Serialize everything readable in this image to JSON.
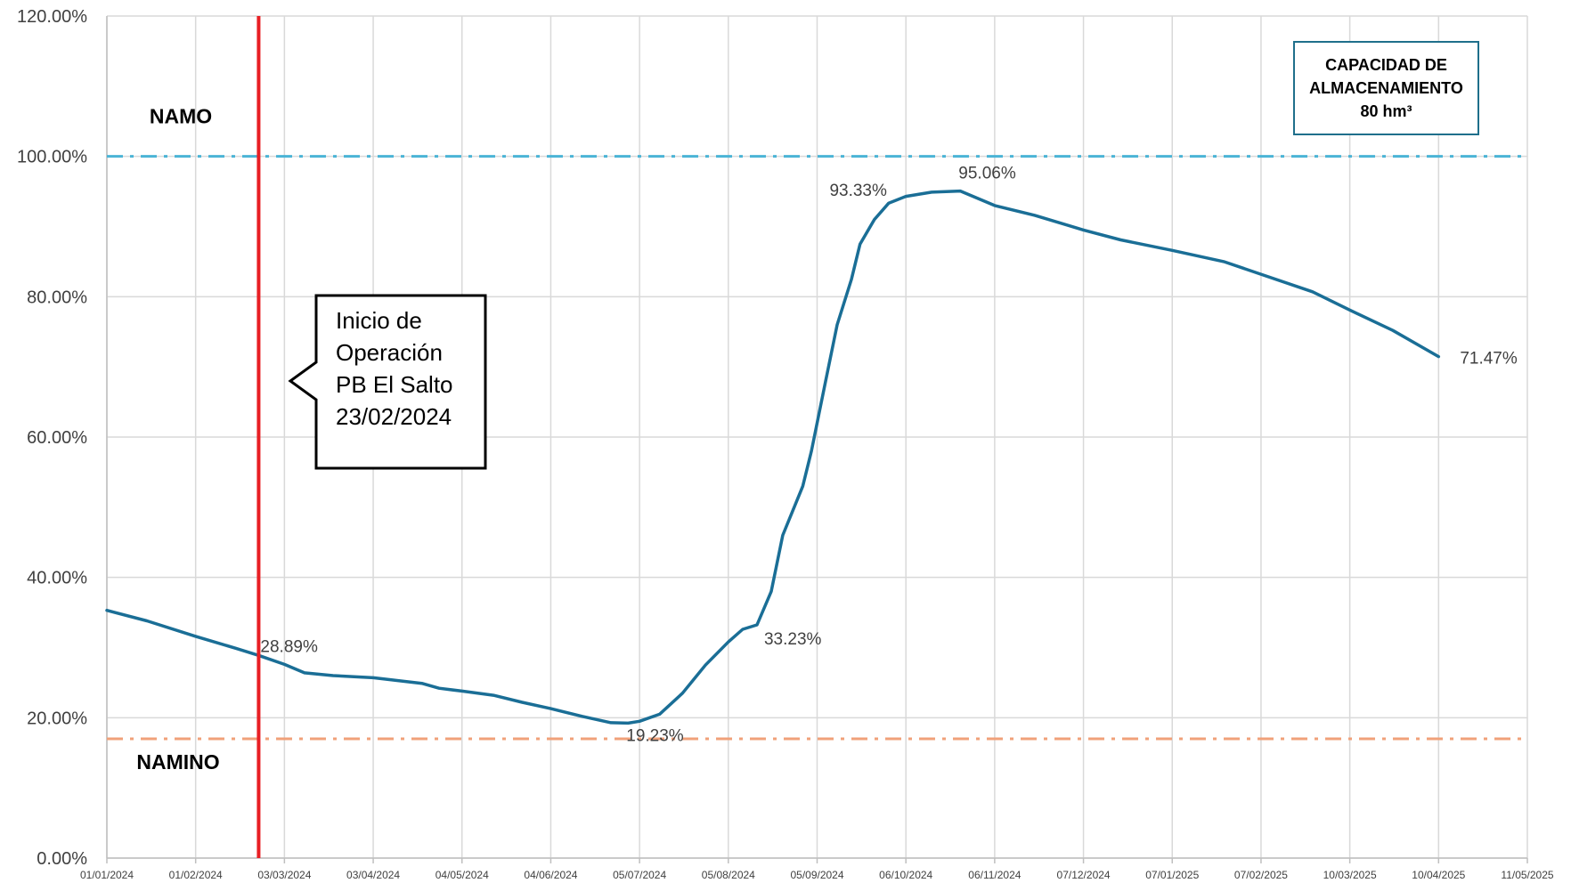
{
  "chart_data": {
    "type": "line",
    "ylim": [
      0,
      120
    ],
    "xlim": [
      "2024-01-01",
      "2025-05-11"
    ],
    "y_ticks": [
      "0.00%",
      "20.00%",
      "40.00%",
      "60.00%",
      "80.00%",
      "100.00%",
      "120.00%"
    ],
    "x_ticks": [
      {
        "date": "2024-01-01",
        "label": "01/01/2024"
      },
      {
        "date": "2024-02-01",
        "label": "01/02/2024"
      },
      {
        "date": "2024-03-03",
        "label": "03/03/2024"
      },
      {
        "date": "2024-04-03",
        "label": "03/04/2024"
      },
      {
        "date": "2024-05-04",
        "label": "04/05/2024"
      },
      {
        "date": "2024-06-04",
        "label": "04/06/2024"
      },
      {
        "date": "2024-07-05",
        "label": "05/07/2024"
      },
      {
        "date": "2024-08-05",
        "label": "05/08/2024"
      },
      {
        "date": "2024-09-05",
        "label": "05/09/2024"
      },
      {
        "date": "2024-10-06",
        "label": "06/10/2024"
      },
      {
        "date": "2024-11-06",
        "label": "06/11/2024"
      },
      {
        "date": "2024-12-07",
        "label": "07/12/2024"
      },
      {
        "date": "2025-01-07",
        "label": "07/01/2025"
      },
      {
        "date": "2025-02-07",
        "label": "07/02/2025"
      },
      {
        "date": "2025-03-10",
        "label": "10/03/2025"
      },
      {
        "date": "2025-04-10",
        "label": "10/04/2025"
      },
      {
        "date": "2025-05-11",
        "label": "11/05/2025"
      }
    ],
    "grid": true,
    "series": [
      {
        "color": "#1a6e96",
        "points": [
          [
            "2024-01-01",
            35.3
          ],
          [
            "2024-01-15",
            33.8
          ],
          [
            "2024-02-01",
            31.6
          ],
          [
            "2024-02-15",
            29.9
          ],
          [
            "2024-02-23",
            28.89
          ],
          [
            "2024-03-03",
            27.6
          ],
          [
            "2024-03-10",
            26.4
          ],
          [
            "2024-03-20",
            26.0
          ],
          [
            "2024-04-03",
            25.7
          ],
          [
            "2024-04-20",
            24.9
          ],
          [
            "2024-04-26",
            24.2
          ],
          [
            "2024-05-04",
            23.8
          ],
          [
            "2024-05-15",
            23.2
          ],
          [
            "2024-05-25",
            22.2
          ],
          [
            "2024-06-04",
            21.3
          ],
          [
            "2024-06-15",
            20.2
          ],
          [
            "2024-06-25",
            19.3
          ],
          [
            "2024-07-01",
            19.23
          ],
          [
            "2024-07-05",
            19.5
          ],
          [
            "2024-07-12",
            20.5
          ],
          [
            "2024-07-20",
            23.5
          ],
          [
            "2024-07-28",
            27.5
          ],
          [
            "2024-08-05",
            30.8
          ],
          [
            "2024-08-10",
            32.6
          ],
          [
            "2024-08-15",
            33.23
          ],
          [
            "2024-08-20",
            38.0
          ],
          [
            "2024-08-24",
            46.0
          ],
          [
            "2024-08-31",
            53.0
          ],
          [
            "2024-09-03",
            58.0
          ],
          [
            "2024-09-05",
            62.0
          ],
          [
            "2024-09-08",
            68.0
          ],
          [
            "2024-09-12",
            76.0
          ],
          [
            "2024-09-17",
            82.5
          ],
          [
            "2024-09-20",
            87.5
          ],
          [
            "2024-09-25",
            91.0
          ],
          [
            "2024-09-30",
            93.33
          ],
          [
            "2024-10-06",
            94.3
          ],
          [
            "2024-10-15",
            94.9
          ],
          [
            "2024-10-25",
            95.06
          ],
          [
            "2024-11-06",
            93.0
          ],
          [
            "2024-11-20",
            91.6
          ],
          [
            "2024-12-07",
            89.5
          ],
          [
            "2024-12-20",
            88.1
          ],
          [
            "2025-01-07",
            86.6
          ],
          [
            "2025-01-25",
            85.0
          ],
          [
            "2025-02-07",
            83.2
          ],
          [
            "2025-02-25",
            80.7
          ],
          [
            "2025-03-10",
            78.1
          ],
          [
            "2025-03-25",
            75.2
          ],
          [
            "2025-04-10",
            71.47
          ]
        ]
      }
    ],
    "data_labels": [
      {
        "date": "2024-02-23",
        "value": 28.89,
        "text": "28.89%"
      },
      {
        "date": "2024-07-01",
        "value": 19.23,
        "text": "19.23%"
      },
      {
        "date": "2024-08-15",
        "value": 33.23,
        "text": "33.23%"
      },
      {
        "date": "2024-09-30",
        "value": 93.33,
        "text": "93.33%"
      },
      {
        "date": "2024-10-25",
        "value": 95.06,
        "text": "95.06%"
      },
      {
        "date": "2025-04-10",
        "value": 71.47,
        "text": "71.47%"
      }
    ],
    "reference_lines": [
      {
        "label": "NAMO",
        "value": 100,
        "color": "#4bb4d6"
      },
      {
        "label": "NAMINO",
        "value": 17,
        "color": "#f0a17a"
      }
    ],
    "marker_line": {
      "date": "2024-02-23",
      "color": "#e81f24"
    },
    "callout": [
      "Inicio de",
      "Operación",
      "PB El Salto",
      "23/02/2024"
    ],
    "info_box": [
      "CAPACIDAD DE",
      "ALMACENAMIENTO",
      "80 hm³"
    ]
  }
}
